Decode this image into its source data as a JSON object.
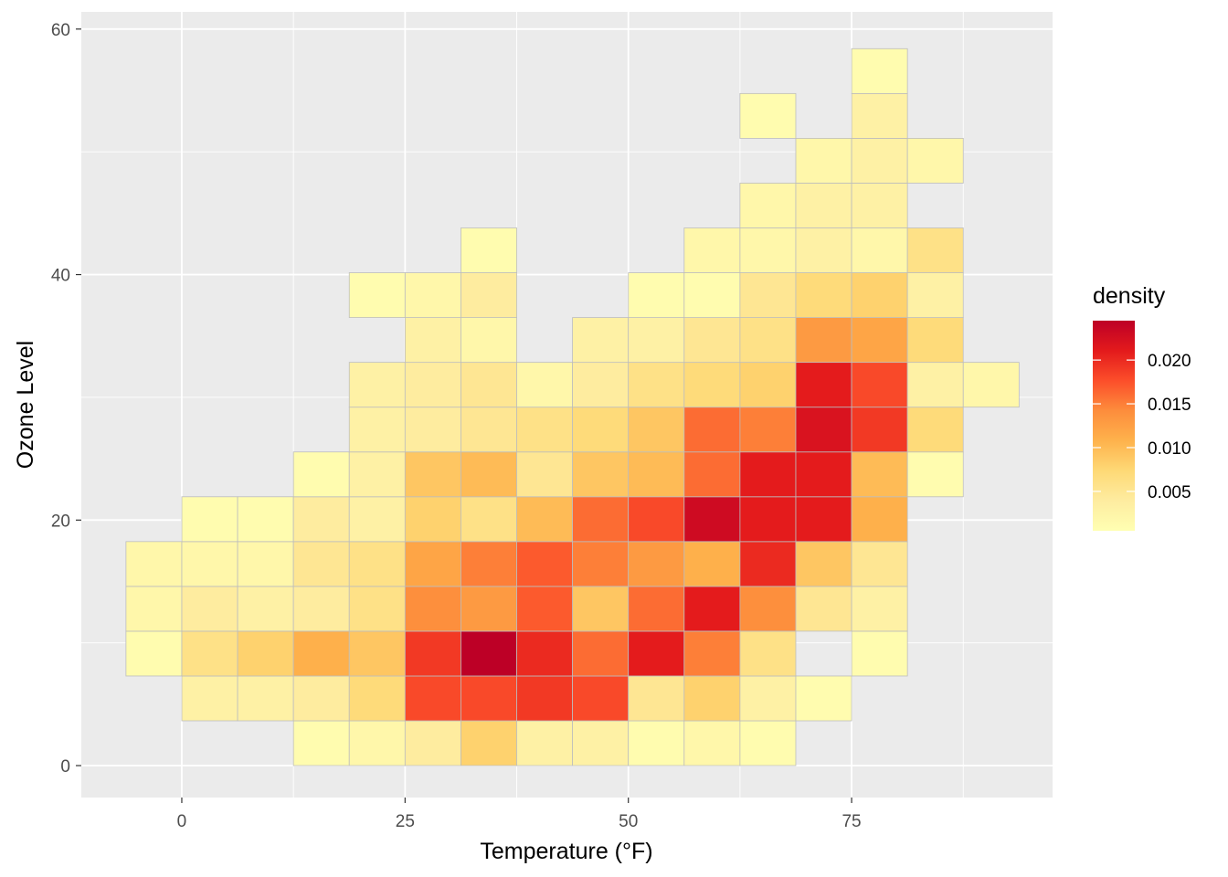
{
  "chart_data": {
    "type": "heatmap",
    "title": "",
    "xlabel": "Temperature (°F)",
    "ylabel": "Ozone Level",
    "xlim": [
      -11.25,
      97.5
    ],
    "ylim": [
      -2.6,
      61.4
    ],
    "x_ticks": [
      0,
      25,
      50,
      75
    ],
    "y_ticks": [
      0,
      20,
      40,
      60
    ],
    "bin_width_x": 6.25,
    "bin_height_y": 3.65,
    "bin_x_start": -6.25,
    "bin_y_start": 0,
    "background": "#ebebeb",
    "grid": true,
    "palette": "YlOrRd",
    "legend": {
      "title": "density",
      "position": "right",
      "range": [
        0.0005,
        0.0245
      ],
      "ticks": [
        {
          "value": 0.005,
          "label": "0.005"
        },
        {
          "value": 0.01,
          "label": "0.010"
        },
        {
          "value": 0.015,
          "label": "0.015"
        },
        {
          "value": 0.02,
          "label": "0.020"
        }
      ]
    },
    "value_columns_note": "each row: [bin column index (0 = -6.25..0), bin row index (0 = 0..3.65), density]",
    "cells": [
      [
        3,
        0,
        0.001
      ],
      [
        4,
        0,
        0.002
      ],
      [
        5,
        0,
        0.004
      ],
      [
        6,
        0,
        0.008
      ],
      [
        7,
        0,
        0.003
      ],
      [
        8,
        0,
        0.003
      ],
      [
        9,
        0,
        0.001
      ],
      [
        10,
        0,
        0.002
      ],
      [
        11,
        0,
        0.001
      ],
      [
        1,
        1,
        0.003
      ],
      [
        2,
        1,
        0.003
      ],
      [
        3,
        1,
        0.004
      ],
      [
        4,
        1,
        0.007
      ],
      [
        5,
        1,
        0.018
      ],
      [
        6,
        1,
        0.018
      ],
      [
        7,
        1,
        0.019
      ],
      [
        8,
        1,
        0.018
      ],
      [
        9,
        1,
        0.005
      ],
      [
        10,
        1,
        0.008
      ],
      [
        11,
        1,
        0.003
      ],
      [
        12,
        1,
        0.001
      ],
      [
        0,
        2,
        0.001
      ],
      [
        1,
        2,
        0.006
      ],
      [
        2,
        2,
        0.008
      ],
      [
        3,
        2,
        0.011
      ],
      [
        4,
        2,
        0.009
      ],
      [
        5,
        2,
        0.019
      ],
      [
        6,
        2,
        0.0245
      ],
      [
        7,
        2,
        0.02
      ],
      [
        8,
        2,
        0.016
      ],
      [
        9,
        2,
        0.021
      ],
      [
        10,
        2,
        0.015
      ],
      [
        11,
        2,
        0.006
      ],
      [
        13,
        2,
        0.001
      ],
      [
        0,
        3,
        0.002
      ],
      [
        1,
        3,
        0.004
      ],
      [
        2,
        3,
        0.003
      ],
      [
        3,
        3,
        0.004
      ],
      [
        4,
        3,
        0.006
      ],
      [
        5,
        3,
        0.014
      ],
      [
        6,
        3,
        0.013
      ],
      [
        7,
        3,
        0.017
      ],
      [
        8,
        3,
        0.009
      ],
      [
        9,
        3,
        0.016
      ],
      [
        10,
        3,
        0.021
      ],
      [
        11,
        3,
        0.014
      ],
      [
        12,
        3,
        0.005
      ],
      [
        13,
        3,
        0.003
      ],
      [
        0,
        4,
        0.002
      ],
      [
        1,
        4,
        0.002
      ],
      [
        2,
        4,
        0.002
      ],
      [
        3,
        4,
        0.005
      ],
      [
        4,
        4,
        0.006
      ],
      [
        5,
        4,
        0.012
      ],
      [
        6,
        4,
        0.015
      ],
      [
        7,
        4,
        0.017
      ],
      [
        8,
        4,
        0.015
      ],
      [
        9,
        4,
        0.013
      ],
      [
        10,
        4,
        0.011
      ],
      [
        11,
        4,
        0.02
      ],
      [
        12,
        4,
        0.009
      ],
      [
        13,
        4,
        0.005
      ],
      [
        1,
        5,
        0.001
      ],
      [
        2,
        5,
        0.001
      ],
      [
        3,
        5,
        0.004
      ],
      [
        4,
        5,
        0.003
      ],
      [
        5,
        5,
        0.008
      ],
      [
        6,
        5,
        0.006
      ],
      [
        7,
        5,
        0.01
      ],
      [
        8,
        5,
        0.016
      ],
      [
        9,
        5,
        0.018
      ],
      [
        10,
        5,
        0.023
      ],
      [
        11,
        5,
        0.021
      ],
      [
        12,
        5,
        0.021
      ],
      [
        13,
        5,
        0.011
      ],
      [
        3,
        6,
        0.001
      ],
      [
        4,
        6,
        0.003
      ],
      [
        5,
        6,
        0.009
      ],
      [
        6,
        6,
        0.01
      ],
      [
        7,
        6,
        0.005
      ],
      [
        8,
        6,
        0.009
      ],
      [
        9,
        6,
        0.01
      ],
      [
        10,
        6,
        0.016
      ],
      [
        11,
        6,
        0.021
      ],
      [
        12,
        6,
        0.021
      ],
      [
        13,
        6,
        0.01
      ],
      [
        14,
        6,
        0.001
      ],
      [
        4,
        7,
        0.003
      ],
      [
        5,
        7,
        0.004
      ],
      [
        6,
        7,
        0.005
      ],
      [
        7,
        7,
        0.006
      ],
      [
        8,
        7,
        0.007
      ],
      [
        9,
        7,
        0.009
      ],
      [
        10,
        7,
        0.016
      ],
      [
        11,
        7,
        0.015
      ],
      [
        12,
        7,
        0.022
      ],
      [
        13,
        7,
        0.019
      ],
      [
        14,
        7,
        0.007
      ],
      [
        4,
        8,
        0.003
      ],
      [
        5,
        8,
        0.004
      ],
      [
        6,
        8,
        0.005
      ],
      [
        7,
        8,
        0.002
      ],
      [
        8,
        8,
        0.004
      ],
      [
        9,
        8,
        0.006
      ],
      [
        10,
        8,
        0.007
      ],
      [
        11,
        8,
        0.008
      ],
      [
        12,
        8,
        0.021
      ],
      [
        13,
        8,
        0.018
      ],
      [
        14,
        8,
        0.003
      ],
      [
        15,
        8,
        0.002
      ],
      [
        5,
        9,
        0.003
      ],
      [
        6,
        9,
        0.002
      ],
      [
        8,
        9,
        0.003
      ],
      [
        9,
        9,
        0.003
      ],
      [
        10,
        9,
        0.005
      ],
      [
        11,
        9,
        0.006
      ],
      [
        12,
        9,
        0.013
      ],
      [
        13,
        9,
        0.012
      ],
      [
        14,
        9,
        0.007
      ],
      [
        4,
        10,
        0.001
      ],
      [
        5,
        10,
        0.002
      ],
      [
        6,
        10,
        0.004
      ],
      [
        9,
        10,
        0.001
      ],
      [
        10,
        10,
        0.001
      ],
      [
        11,
        10,
        0.005
      ],
      [
        12,
        10,
        0.007
      ],
      [
        13,
        10,
        0.008
      ],
      [
        14,
        10,
        0.003
      ],
      [
        6,
        11,
        0.001
      ],
      [
        10,
        11,
        0.002
      ],
      [
        11,
        11,
        0.002
      ],
      [
        12,
        11,
        0.003
      ],
      [
        13,
        11,
        0.002
      ],
      [
        14,
        11,
        0.006
      ],
      [
        11,
        12,
        0.002
      ],
      [
        12,
        12,
        0.003
      ],
      [
        13,
        12,
        0.003
      ],
      [
        12,
        13,
        0.002
      ],
      [
        13,
        13,
        0.003
      ],
      [
        14,
        13,
        0.002
      ],
      [
        11,
        14,
        0.001
      ],
      [
        13,
        14,
        0.003
      ],
      [
        13,
        15,
        0.001
      ]
    ]
  }
}
